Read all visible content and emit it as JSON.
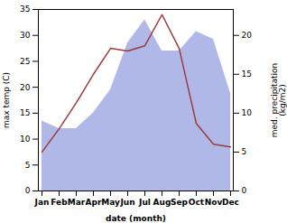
{
  "chart_data": {
    "type": "line",
    "categories": [
      "Jan",
      "Feb",
      "Mar",
      "Apr",
      "May",
      "Jun",
      "Jul",
      "Aug",
      "Sep",
      "Oct",
      "Nov",
      "Dec"
    ],
    "series": [
      {
        "type": "area",
        "axis": "y2",
        "color": "#b0b8e8",
        "values": [
          9.0,
          8.0,
          8.0,
          10.0,
          13.0,
          19.0,
          22.0,
          18.0,
          18.0,
          20.5,
          19.5,
          12.5
        ]
      },
      {
        "type": "line",
        "color": "#9e3a3a",
        "values": [
          7.5,
          12.0,
          17.0,
          22.5,
          27.5,
          27.0,
          28.0,
          34.0,
          27.5,
          13.0,
          9.0,
          8.5
        ]
      }
    ],
    "xlabel": "date (month)",
    "ylabel": "max temp (C)",
    "y2label": "med. precipitation\n(kg/m2)",
    "ylim": [
      0,
      35
    ],
    "yticks": [
      0,
      5,
      10,
      15,
      20,
      25,
      30,
      35
    ],
    "y2lim": [
      0,
      23.33
    ],
    "y2ticks": [
      0,
      5,
      10,
      15,
      20
    ]
  }
}
